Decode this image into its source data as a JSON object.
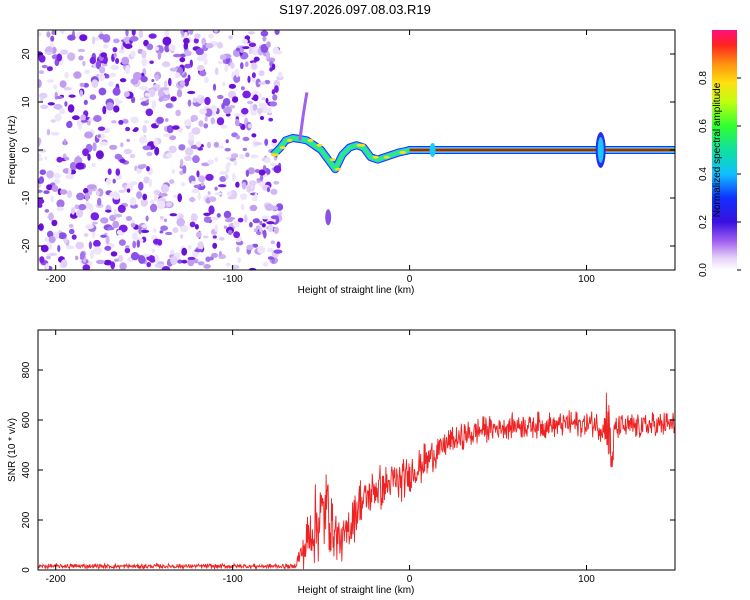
{
  "title": "S197.2026.097.08.03.R19",
  "colors": {
    "snr_line": "#ee2222",
    "ridge_core": "#d01010",
    "noise_dark": "#7a1fe6",
    "noise_light": "#d2b8f5",
    "axis": "#000000"
  },
  "chart_data": [
    {
      "type": "heatmap",
      "name": "spectrogram",
      "xlabel": "Height of straight line (km)",
      "ylabel": "Frequency (Hz)",
      "xlim": [
        -210,
        150
      ],
      "ylim": [
        -25,
        25
      ],
      "xticks": [
        -200,
        -100,
        0,
        100
      ],
      "xtick_labels": [
        "-200",
        "-100",
        "0",
        "100"
      ],
      "yticks": [
        -20,
        -10,
        0,
        10,
        20
      ],
      "ytick_labels": [
        "-20",
        "-10",
        "0",
        "10",
        "20"
      ],
      "noise_region_x": [
        -210,
        -75
      ],
      "ridge": {
        "x": [
          -77,
          -73,
          -70,
          -66,
          -62,
          -58,
          -54,
          -50,
          -46,
          -42,
          -38,
          -34,
          -30,
          -26,
          -22,
          -18,
          -14,
          -10,
          -6,
          -2,
          0,
          150
        ],
        "freq": [
          -1,
          0.5,
          2,
          2.5,
          2.3,
          2,
          1,
          0,
          -2,
          -4,
          -1,
          0.5,
          1,
          0.5,
          -1.5,
          -2,
          -1.5,
          -1,
          -0.5,
          -0.2,
          0,
          0
        ],
        "labels": {
          "colorbar_label": "Normalized spectral amplitude",
          "colorbar_ticks": [
            0.0,
            0.2,
            0.4,
            0.6,
            0.8
          ],
          "colorbar_tick_labels": [
            "0.0",
            "0.2",
            "0.4",
            "0.6",
            "0.8"
          ]
        }
      },
      "features": [
        {
          "x": -60,
          "freq": 10,
          "label": "upper branch"
        },
        {
          "x": -46,
          "freq": -14,
          "label": "lower blob"
        },
        {
          "x": 108,
          "freq": 0,
          "label": "vertical spike"
        },
        {
          "x": 13,
          "freq": 0,
          "label": "small spike"
        }
      ]
    },
    {
      "type": "line",
      "name": "snr",
      "xlabel": "Height of straight line (km)",
      "ylabel": "SNR (10 * v/v)",
      "xlim": [
        -210,
        150
      ],
      "ylim": [
        0,
        960
      ],
      "xticks": [
        -200,
        -100,
        0,
        100
      ],
      "xtick_labels": [
        "-200",
        "-100",
        "0",
        "100"
      ],
      "yticks": [
        0,
        200,
        400,
        600,
        800
      ],
      "ytick_labels": [
        "0",
        "200",
        "400",
        "600",
        "800"
      ],
      "series": [
        {
          "name": "SNR",
          "x": [
            -210,
            -100,
            -65,
            -58,
            -52,
            -46,
            -42,
            -38,
            -34,
            -30,
            -26,
            -22,
            -18,
            -14,
            -10,
            -6,
            -2,
            0,
            5,
            10,
            15,
            20,
            30,
            40,
            50,
            60,
            70,
            80,
            90,
            100,
            105,
            110,
            112,
            114,
            116,
            120,
            130,
            140,
            150
          ],
          "y": [
            15,
            15,
            15,
            110,
            200,
            250,
            150,
            110,
            170,
            250,
            280,
            300,
            330,
            330,
            350,
            350,
            370,
            390,
            410,
            440,
            470,
            500,
            530,
            560,
            570,
            580,
            580,
            580,
            585,
            585,
            585,
            560,
            620,
            420,
            560,
            575,
            575,
            580,
            580
          ],
          "noise_amplitude": [
            10,
            10,
            10,
            110,
            180,
            180,
            110,
            80,
            120,
            120,
            110,
            100,
            100,
            90,
            90,
            90,
            80,
            80,
            80,
            80,
            70,
            60,
            60,
            55,
            55,
            55,
            55,
            55,
            55,
            55,
            55,
            60,
            240,
            110,
            60,
            55,
            55,
            55,
            55
          ]
        }
      ]
    }
  ]
}
